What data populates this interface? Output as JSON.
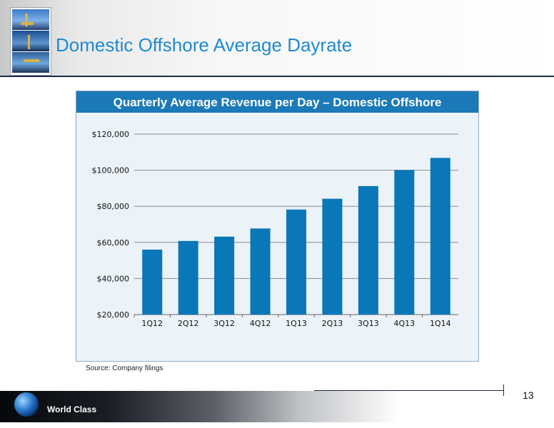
{
  "header": {
    "title": "Domestic Offshore Average Dayrate"
  },
  "panel": {
    "title": "Quarterly Average Revenue per Day – Domestic Offshore",
    "source": "Source: Company filings"
  },
  "footer": {
    "brand": "World Class",
    "page_number": "13"
  },
  "colors": {
    "title_blue": "#1f8ad0",
    "panel_header": "#1c7ab8",
    "bar": "#0a77b8",
    "panel_background": "#ecf3f8"
  },
  "chart_data": {
    "type": "bar",
    "categories": [
      "1Q12",
      "2Q12",
      "3Q12",
      "4Q12",
      "1Q13",
      "2Q13",
      "3Q13",
      "4Q13",
      "1Q14"
    ],
    "values": [
      56000,
      60800,
      63200,
      67700,
      78200,
      84200,
      91200,
      100100,
      106800
    ],
    "title": "Quarterly Average Revenue per Day – Domestic Offshore",
    "xlabel": "",
    "ylabel": "",
    "ylim": [
      20000,
      120000
    ],
    "yticks": [
      20000,
      40000,
      60000,
      80000,
      100000,
      120000
    ],
    "ytick_labels": [
      "$20,000",
      "$40,000",
      "$60,000",
      "$80,000",
      "$100,000",
      "$120,000"
    ],
    "grid": true,
    "legend": "none"
  }
}
